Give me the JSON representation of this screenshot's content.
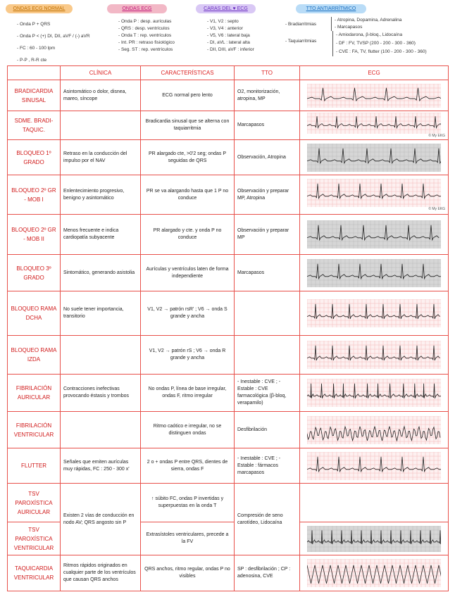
{
  "headers": {
    "normal": {
      "title": "ONDAS ECG NORMAL",
      "color": "#f9c98a",
      "items": [
        "- Onda P + QRS",
        "- Onda P < (+) DI, DII, aVF / (-) aVR",
        "- FC : 60 - 100 lpm",
        "- P-P , R-R cte"
      ]
    },
    "ondas": {
      "title": "ONDAS ECG",
      "color": "#f2b8c6",
      "items": [
        "- Onda P : desp. aurículas",
        "- QRS : desp. ventrículos",
        "- Onda T : rep. ventrículos",
        "- Int. PR : retraso fisiológico",
        "- Seg. ST : rep. ventrículos"
      ]
    },
    "caras": {
      "title": "CARAS DEL ♥ ECG",
      "color": "#d9c8f5",
      "items": [
        "- V1, V2 : septo",
        "- V3, V4 : anterior",
        "- V5, V6 : lateral baja",
        "- DI, aVL : lateral alta",
        "- DII, DIII, aVF : inferior"
      ]
    },
    "tto": {
      "title": "TTO ANTIARRÍTMICO",
      "color": "#b9dcf7",
      "brady_label": "- Bradiarritmias",
      "brady": [
        "- Atropina, Dopamina, Adrenalina",
        "- Marcapasos"
      ],
      "taqui_label": "- Taquiarritmias",
      "taqui": [
        "- Amiodarona, β-bloq., Lidocaína",
        "- DF : FV, TVSP (200 - 200 - 300 - 360)",
        "- CVE : FA, TV, flutter (100 - 200 - 300 - 360)"
      ]
    }
  },
  "table": {
    "columns": [
      "",
      "CLÍNICA",
      "CARACTERÍSTICAS",
      "TTO",
      "ECG"
    ],
    "rows": [
      {
        "name": "BRADICARDIA SINUSAL",
        "clinica": "Asintomático o dolor, disnea, mareo, síncope",
        "car": "ECG normal pero lento",
        "tto": "O2, monitorización, atropina, MP",
        "ecg": "brady"
      },
      {
        "name": "SDME. BRADI-TAQUIC.",
        "clinica": "",
        "car": "Bradicardia sinusal que se alterna con taquiarritmia",
        "tto": "Marcapasos",
        "ecg": "bt",
        "ecg_credit": "© My EKG"
      },
      {
        "name": "BLOQUEO 1º GRADO",
        "clinica": "Retraso en la conducción del impulso por el NAV",
        "car": "PR alargado cte, >0'2 seg; ondas P seguidas de QRS",
        "tto": "Observación, Atropina",
        "ecg": "b1"
      },
      {
        "name": "BLOQUEO 2º GR - MOB I",
        "clinica": "Enlentecimiento progresivo, benigno y asintomático",
        "car": "PR se va alargando hasta que 1 P no conduce",
        "tto": "Observación y preparar MP, Atropina",
        "ecg": "m1",
        "ecg_credit": "© My EKG"
      },
      {
        "name": "BLOQUEO 2º GR - MOB II",
        "clinica": "Menos frecuente e indica cardiopatía subyacente",
        "car": "PR alargado y cte. y onda P no conduce",
        "tto": "Observación y preparar MP",
        "ecg": "m2"
      },
      {
        "name": "BLOQUEO 3º GRADO",
        "clinica": "Sintomático, generando asistolia",
        "car": "Aurículas y ventrículos laten de forma independiente",
        "tto": "Marcapasos",
        "ecg": "b3"
      },
      {
        "name": "BLOQUEO RAMA DCHA",
        "clinica": "No suele tener importancia, transitorio",
        "car": "V1, V2 → patrón rsR' ; V6 → onda S grande y ancha",
        "tto": "",
        "ecg": "brd"
      },
      {
        "name": "BLOQUEO RAMA IZDA",
        "clinica": "",
        "car": "V1, V2 → patrón rS ; V6 → onda R grande y ancha",
        "tto": "",
        "ecg": "bri"
      },
      {
        "name": "FIBRILACIÓN AURICULAR",
        "clinica": "Contracciones inefectivas provocando éstasis y trombos",
        "car": "No ondas P, línea de base irregular, ondas F, ritmo irregular",
        "tto": "- Inestable : CVE ; - Estable : CVE farmacológica (β-bloq, verapamilo)",
        "ecg": "fa"
      },
      {
        "name": "FIBRILACIÓN VENTRICULAR",
        "clinica": "",
        "car": "Ritmo caótico e irregular, no se distinguen ondas",
        "tto": "Desfibrilación",
        "ecg": "fv"
      },
      {
        "name": "FLUTTER",
        "clinica": "Señales que emiten aurículas muy rápidas, FC : 250 - 300 x'",
        "car": "2 o + ondas P entre QRS, dientes de sierra, ondas F",
        "tto": "- Inestable : CVE ; - Estable : fármacos marcapasos",
        "ecg": "fl"
      },
      {
        "name": "TSV PAROXÍSTICA AURICULAR",
        "clinica": "Existen 2 vías de conducción en nodo AV; QRS angosto sin P",
        "car": "↑ súbito FC, ondas P invertidas y superpuestas en la onda T",
        "tto": "Compresión de seno carotídeo, Lidocaína",
        "ecg": ""
      },
      {
        "name": "TSV PAROXÍSTICA VENTRICULAR",
        "car": "Extrasístoles ventriculares, precede a la FV",
        "ecg": "tsv"
      },
      {
        "name": "TAQUICARDIA VENTRICULAR",
        "clinica": "Ritmos rápidos originados en cualquier parte de los ventrículos que causan QRS anchos",
        "car": "QRS anchos, ritmo regular, ondas P no visibles",
        "tto": "SP : desfibrilación ; CP : adenosina, CVE",
        "ecg": "tv"
      }
    ]
  },
  "colors": {
    "grid": "#e8504a",
    "heading": "#d01818"
  }
}
